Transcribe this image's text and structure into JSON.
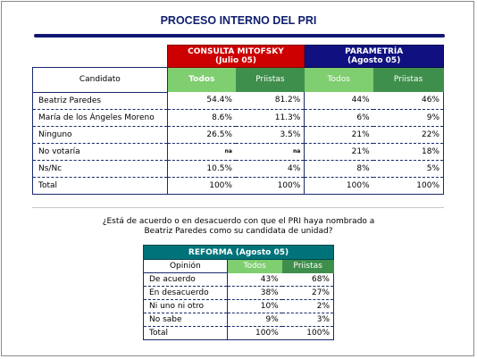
{
  "title": "PROCESO INTERNO DEL PRI",
  "main_table": {
    "mitofsky_header": [
      "CONSULTA MITOFSKY",
      "(Julio 05)"
    ],
    "parametria_header": [
      "PARAMETRÍA",
      "(Agosto 05)"
    ],
    "candidate_header": "Candidato",
    "sub_headers": [
      "Todos",
      "Priistas",
      "Todos",
      "Priistas"
    ],
    "rows": [
      {
        "label": "Beatriz Paredes",
        "values": [
          "54.4%",
          "81.2%",
          "44%",
          "46%"
        ]
      },
      {
        "label": "María de los Ángeles Moreno",
        "values": [
          "8.6%",
          "11.3%",
          "6%",
          "9%"
        ]
      },
      {
        "label": "Ninguno",
        "values": [
          "26.5%",
          "3.5%",
          "21%",
          "22%"
        ]
      },
      {
        "label": "No votaría",
        "values": [
          "na",
          "na",
          "21%",
          "18%"
        ]
      },
      {
        "label": "Ns/Nc",
        "values": [
          "10.5%",
          "4%",
          "8%",
          "5%"
        ]
      },
      {
        "label": "Total",
        "values": [
          "100%",
          "100%",
          "100%",
          "100%"
        ]
      }
    ]
  },
  "question": [
    "¿Está de acuerdo o en desacuerdo con que el PRI haya nombrado a",
    "Beatriz Paredes como su candidata de unidad?"
  ],
  "reforma_table": {
    "header": "REFORMA (Agosto 05)",
    "opinion_header": "Opinión",
    "sub_headers": [
      "Todos",
      "Priistas"
    ],
    "rows": [
      {
        "label": "De acuerdo",
        "values": [
          "43%",
          "68%"
        ]
      },
      {
        "label": "En desacuerdo",
        "values": [
          "38%",
          "27%"
        ]
      },
      {
        "label": "Ni uno ni otro",
        "values": [
          "10%",
          "2%"
        ]
      },
      {
        "label": "No sabe",
        "values": [
          "9%",
          "3%"
        ]
      },
      {
        "label": "Total",
        "values": [
          "100%",
          "100%"
        ]
      }
    ]
  }
}
